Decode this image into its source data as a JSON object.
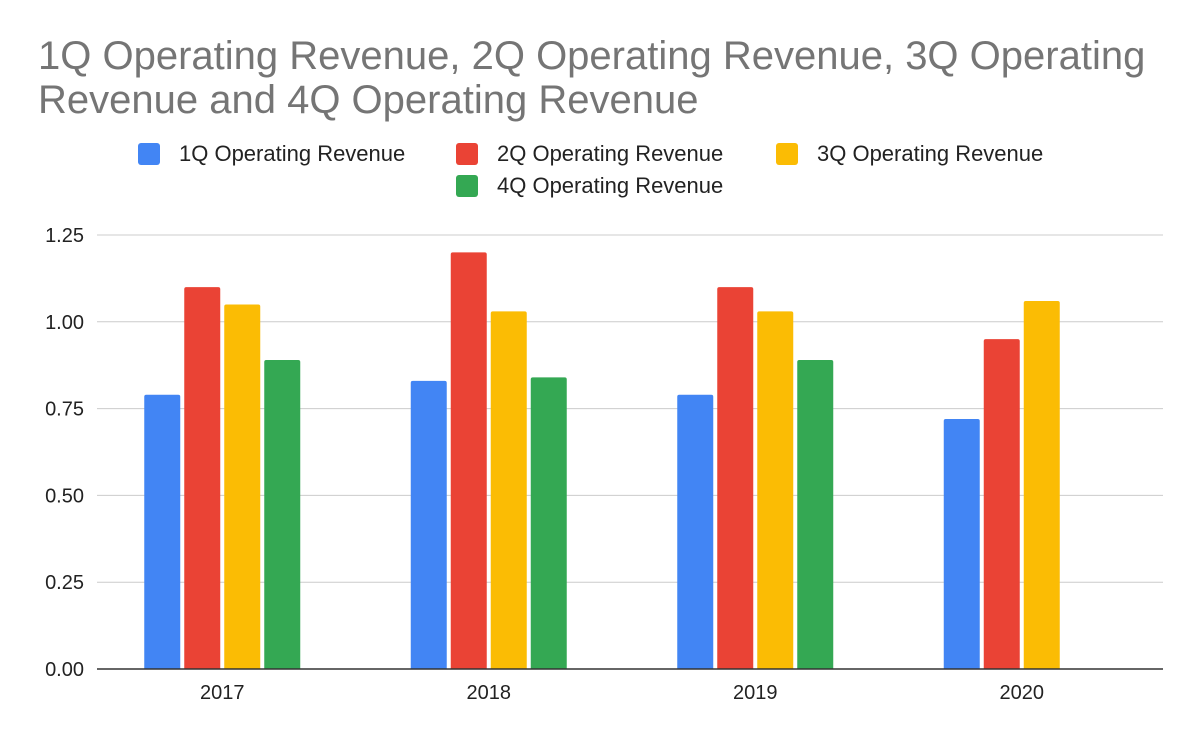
{
  "chart_data": {
    "type": "bar",
    "title": "1Q Operating Revenue, 2Q Operating Revenue, 3Q Operating Revenue and 4Q Operating Revenue",
    "xlabel": "",
    "ylabel": "",
    "categories": [
      "2017",
      "2018",
      "2019",
      "2020"
    ],
    "series": [
      {
        "name": "1Q Operating Revenue",
        "color": "#4285f4",
        "values": [
          0.79,
          0.83,
          0.79,
          0.72
        ]
      },
      {
        "name": "2Q Operating Revenue",
        "color": "#ea4335",
        "values": [
          1.1,
          1.2,
          1.1,
          0.95
        ]
      },
      {
        "name": "3Q Operating Revenue",
        "color": "#fbbc04",
        "values": [
          1.05,
          1.03,
          1.03,
          1.06
        ]
      },
      {
        "name": "4Q Operating Revenue",
        "color": "#34a853",
        "values": [
          0.89,
          0.84,
          0.89,
          null
        ]
      }
    ],
    "ylim": [
      0,
      1.25
    ],
    "yticks": [
      "0.00",
      "0.25",
      "0.50",
      "0.75",
      "1.00",
      "1.25"
    ],
    "grid": true,
    "legend_position": "top"
  }
}
